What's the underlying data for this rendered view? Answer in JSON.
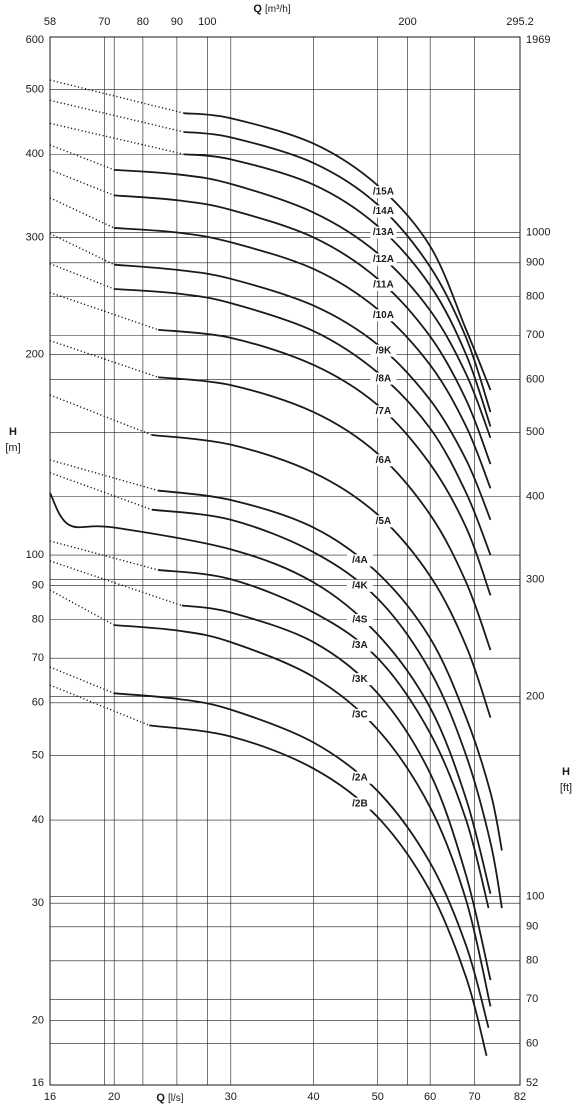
{
  "chart_data": {
    "type": "line",
    "x_label": {
      "symbol": "Q",
      "unit": "[l/s]"
    },
    "x2_label": {
      "symbol": "Q",
      "unit": "[m³/h]"
    },
    "y_label": {
      "symbol": "H",
      "unit": "[m]"
    },
    "y2_label": {
      "symbol": "H",
      "unit": "[ft]"
    },
    "xscale": "log",
    "yscale": "log",
    "xlim": [
      16,
      82
    ],
    "xticks": [
      16,
      20,
      30,
      40,
      50,
      60,
      70,
      82
    ],
    "x2lim": [
      58,
      295.2
    ],
    "x2ticks": [
      58,
      70,
      80,
      90,
      100,
      200,
      295.2
    ],
    "ylim": [
      16,
      600
    ],
    "yticks": [
      16,
      20,
      30,
      40,
      50,
      60,
      70,
      80,
      90,
      100,
      200,
      300,
      400,
      500,
      600
    ],
    "y2lim": [
      52,
      1969
    ],
    "y2ticks": [
      52,
      60,
      70,
      80,
      90,
      100,
      200,
      300,
      400,
      500,
      600,
      700,
      800,
      900,
      1000,
      1969
    ],
    "grid": true,
    "color": "#1a1a1a",
    "series": [
      {
        "name": "/15A",
        "extension_x": [
          16,
          25.5
        ],
        "extension_values": [
          517,
          461
        ],
        "x": [
          25.5,
          30,
          40,
          50,
          60,
          68,
          74
        ],
        "values": [
          461,
          453,
          415,
          359,
          291,
          218,
          177
        ]
      },
      {
        "name": "/14A",
        "extension_x": [
          16,
          25.5
        ],
        "extension_values": [
          482,
          432
        ],
        "x": [
          25.5,
          30,
          40,
          50,
          60,
          68,
          74
        ],
        "values": [
          432,
          424,
          388,
          336,
          271,
          212,
          164
        ]
      },
      {
        "name": "/13A",
        "extension_x": [
          16,
          25.5
        ],
        "extension_values": [
          445,
          400
        ],
        "x": [
          25.5,
          30,
          40,
          50,
          60,
          68,
          74
        ],
        "values": [
          400,
          393,
          360,
          312,
          254,
          200,
          156
        ]
      },
      {
        "name": "/12A",
        "extension_x": [
          16,
          20
        ],
        "extension_values": [
          413,
          379
        ],
        "x": [
          20,
          25,
          30,
          40,
          50,
          60,
          68,
          74
        ],
        "values": [
          379,
          373,
          361,
          327,
          284,
          233,
          187,
          150
        ]
      },
      {
        "name": "/11A",
        "extension_x": [
          16,
          20
        ],
        "extension_values": [
          379,
          347
        ],
        "x": [
          20,
          25,
          30,
          40,
          50,
          60,
          68,
          74
        ],
        "values": [
          347,
          341,
          330,
          300,
          260,
          213,
          171,
          137
        ]
      },
      {
        "name": "/10A",
        "extension_x": [
          16,
          20
        ],
        "extension_values": [
          344,
          310
        ],
        "x": [
          20,
          25,
          30,
          40,
          50,
          60,
          68,
          74
        ],
        "values": [
          310,
          305,
          295,
          269,
          234,
          193,
          156,
          126
        ]
      },
      {
        "name": "/9K",
        "extension_x": [
          16,
          20
        ],
        "extension_values": [
          304,
          273
        ],
        "x": [
          20,
          25,
          30,
          40,
          50,
          60,
          68,
          74
        ],
        "values": [
          273,
          268,
          260,
          237,
          207,
          171,
          139,
          113
        ]
      },
      {
        "name": "/8A",
        "extension_x": [
          16,
          20
        ],
        "extension_values": [
          274,
          251
        ],
        "x": [
          20,
          25,
          30,
          40,
          50,
          60,
          68,
          74
        ],
        "values": [
          251,
          247,
          239,
          217,
          188,
          155,
          124,
          100
        ]
      },
      {
        "name": "/7A",
        "extension_x": [
          16,
          23.3
        ],
        "extension_values": [
          248,
          218
        ],
        "x": [
          23.3,
          30,
          40,
          50,
          60,
          68,
          74
        ],
        "values": [
          218,
          212,
          193,
          168,
          137,
          110,
          87
        ]
      },
      {
        "name": "/6A",
        "extension_x": [
          16,
          23.3
        ],
        "extension_values": [
          210,
          185
        ],
        "x": [
          23.3,
          30,
          40,
          50,
          60,
          68,
          74
        ],
        "values": [
          185,
          180,
          164,
          142,
          115,
          91,
          72
        ]
      },
      {
        "name": "/5A",
        "extension_x": [
          16,
          22.8
        ],
        "extension_values": [
          174,
          151.5
        ],
        "x": [
          22.8,
          30,
          40,
          50,
          60,
          68,
          74
        ],
        "values": [
          151.5,
          146.5,
          133,
          115,
          93,
          73,
          57
        ]
      },
      {
        "name": "/4A",
        "extension_x": [
          16,
          23.3
        ],
        "extension_values": [
          139,
          125
        ],
        "x": [
          23.3,
          30,
          40,
          50,
          60,
          68,
          74,
          77
        ],
        "values": [
          125,
          121,
          110,
          94,
          75,
          57,
          44,
          36
        ]
      },
      {
        "name": "/4K",
        "extension_x": [
          16,
          22.8
        ],
        "extension_values": [
          133,
          117
        ],
        "x": [
          22.8,
          30,
          40,
          50,
          60,
          68,
          74,
          77
        ],
        "values": [
          117,
          113,
          101,
          86,
          67,
          50,
          37,
          29.5
        ]
      },
      {
        "name": "/4S",
        "x": [
          16,
          17.1,
          20,
          30,
          40,
          50,
          60,
          68,
          74
        ],
        "values": [
          124,
          111,
          110,
          102,
          91,
          76,
          59,
          43,
          31
        ]
      },
      {
        "name": "/3A",
        "extension_x": [
          16,
          23.3
        ],
        "extension_values": [
          105,
          95
        ],
        "x": [
          23.3,
          30,
          40,
          50,
          60,
          68,
          73.5
        ],
        "values": [
          95,
          92,
          82,
          70,
          54,
          40,
          29.5
        ]
      },
      {
        "name": "/3K",
        "extension_x": [
          16,
          25.3
        ],
        "extension_values": [
          98,
          84
        ],
        "x": [
          25.3,
          30,
          40,
          50,
          60,
          68,
          74
        ],
        "values": [
          84,
          82,
          74,
          62,
          47,
          33,
          23
        ]
      },
      {
        "name": "/3C",
        "extension_x": [
          16,
          20
        ],
        "extension_values": [
          88.6,
          78.5
        ],
        "x": [
          20,
          25,
          30,
          40,
          50,
          60,
          68,
          74
        ],
        "values": [
          78.5,
          77,
          74,
          65.6,
          54.7,
          41.8,
          30.3,
          21
        ]
      },
      {
        "name": "/2A",
        "extension_x": [
          16,
          20
        ],
        "extension_values": [
          67.9,
          62
        ],
        "x": [
          20,
          25,
          30,
          40,
          50,
          60,
          68,
          73.5
        ],
        "values": [
          62,
          60.8,
          58.6,
          52.3,
          44.2,
          34.5,
          25.9,
          19.5
        ]
      },
      {
        "name": "/2B",
        "extension_x": [
          16,
          22.6
        ],
        "extension_values": [
          63.8,
          55.5
        ],
        "x": [
          22.6,
          30,
          40,
          50,
          60,
          68,
          73
        ],
        "values": [
          55.5,
          53.4,
          47.8,
          40.4,
          31.3,
          23.2,
          17.7
        ]
      }
    ]
  }
}
